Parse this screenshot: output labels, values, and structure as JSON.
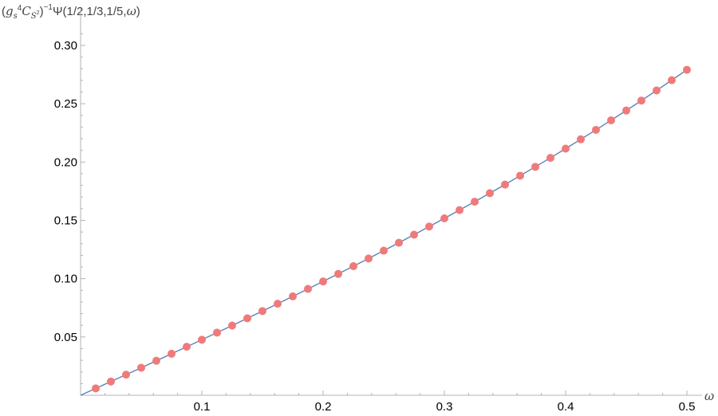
{
  "chart_data": {
    "type": "scatter",
    "xlabel": "ω",
    "ylabel": {
      "open": "(",
      "g": "g",
      "g_sub": "s",
      "g_sup": "4",
      "C": "C",
      "C_sub": "S",
      "C_sub_sup": "2",
      "close": ")",
      "power": "−1",
      "rest": "Ψ(1/2,1/3,1/5,",
      "omega": "ω",
      "end": ")"
    },
    "xlim": [
      0,
      0.5
    ],
    "ylim": [
      0,
      0.3
    ],
    "x_ticks": [
      {
        "value": 0.1,
        "label": "0.1"
      },
      {
        "value": 0.2,
        "label": "0.2"
      },
      {
        "value": 0.3,
        "label": "0.3"
      },
      {
        "value": 0.4,
        "label": "0.4"
      },
      {
        "value": 0.5,
        "label": "0.5"
      }
    ],
    "y_ticks": [
      {
        "value": 0.05,
        "label": "0.05"
      },
      {
        "value": 0.1,
        "label": "0.10"
      },
      {
        "value": 0.15,
        "label": "0.15"
      },
      {
        "value": 0.2,
        "label": "0.20"
      },
      {
        "value": 0.25,
        "label": "0.25"
      },
      {
        "value": 0.3,
        "label": "0.30"
      }
    ],
    "grid": false,
    "series": [
      {
        "kind": "line",
        "color": "#5E81B5",
        "x": [
          0,
          0.0125,
          0.025,
          0.0375,
          0.05,
          0.0625,
          0.075,
          0.0875,
          0.1,
          0.1125,
          0.125,
          0.1375,
          0.15,
          0.1625,
          0.175,
          0.1875,
          0.2,
          0.2125,
          0.225,
          0.2375,
          0.25,
          0.2625,
          0.275,
          0.2875,
          0.3,
          0.3125,
          0.325,
          0.3375,
          0.35,
          0.3625,
          0.375,
          0.3875,
          0.4,
          0.4125,
          0.425,
          0.4375,
          0.45,
          0.4625,
          0.475,
          0.4875,
          0.5
        ],
        "y": [
          0,
          0.0059,
          0.0118,
          0.0177,
          0.0236,
          0.0296,
          0.0356,
          0.0416,
          0.0476,
          0.0537,
          0.0598,
          0.066,
          0.0722,
          0.0785,
          0.0848,
          0.0912,
          0.0976,
          0.1041,
          0.1107,
          0.1173,
          0.124,
          0.1308,
          0.1377,
          0.1447,
          0.1517,
          0.1588,
          0.166,
          0.1733,
          0.1807,
          0.1883,
          0.1959,
          0.2036,
          0.2115,
          0.2195,
          0.2276,
          0.2358,
          0.2442,
          0.2527,
          0.2614,
          0.2702,
          0.2791
        ]
      },
      {
        "kind": "points",
        "color": "#F07A7A",
        "x": [
          0.0125,
          0.025,
          0.0375,
          0.05,
          0.0625,
          0.075,
          0.0875,
          0.1,
          0.1125,
          0.125,
          0.1375,
          0.15,
          0.1625,
          0.175,
          0.1875,
          0.2,
          0.2125,
          0.225,
          0.2375,
          0.25,
          0.2625,
          0.275,
          0.2875,
          0.3,
          0.3125,
          0.325,
          0.3375,
          0.35,
          0.3625,
          0.375,
          0.3875,
          0.4,
          0.4125,
          0.425,
          0.4375,
          0.45,
          0.4625,
          0.475,
          0.4875,
          0.5
        ],
        "y": [
          0.0059,
          0.0118,
          0.0177,
          0.0236,
          0.0296,
          0.0356,
          0.0416,
          0.0476,
          0.0537,
          0.0598,
          0.066,
          0.0722,
          0.0785,
          0.0848,
          0.0912,
          0.0976,
          0.1041,
          0.1107,
          0.1173,
          0.124,
          0.1308,
          0.1377,
          0.1447,
          0.1517,
          0.1588,
          0.166,
          0.1733,
          0.1807,
          0.1883,
          0.1959,
          0.2036,
          0.2115,
          0.2195,
          0.2276,
          0.2358,
          0.2442,
          0.2527,
          0.2614,
          0.2702,
          0.2791
        ]
      }
    ]
  }
}
